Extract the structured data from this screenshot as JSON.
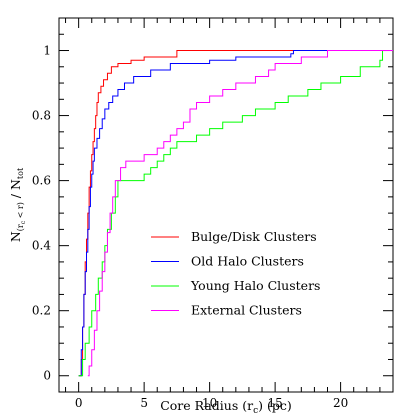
{
  "chart_data": {
    "type": "line",
    "subtype": "cumulative-step",
    "xlabel": "Core Radius (r",
    "xlabel_sub": "c",
    "xlabel_tail": ") (pc)",
    "ylabel_N": "N",
    "ylabel_sub": "(r",
    "ylabel_sub2": "c",
    "ylabel_sub3": " < r)",
    "ylabel_slash": " / N",
    "ylabel_tot": "tot",
    "xlim": [
      -1.5,
      24
    ],
    "ylim": [
      -0.05,
      1.1
    ],
    "x_ticks": [
      0,
      5,
      10,
      15,
      20
    ],
    "y_ticks": [
      0,
      0.2,
      0.4,
      0.6,
      0.8,
      1
    ],
    "x_tick_labels": [
      "0",
      "5",
      "10",
      "15",
      "20"
    ],
    "y_tick_labels": [
      "0",
      "0.2",
      "0.4",
      "0.6",
      "0.8",
      "1"
    ],
    "legend_position": "lower-right",
    "series": [
      {
        "name": "Bulge/Disk Clusters",
        "color": "#ff0000",
        "points": [
          [
            0,
            0
          ],
          [
            0.2,
            0.05
          ],
          [
            0.3,
            0.15
          ],
          [
            0.4,
            0.25
          ],
          [
            0.5,
            0.35
          ],
          [
            0.6,
            0.42
          ],
          [
            0.7,
            0.5
          ],
          [
            0.8,
            0.58
          ],
          [
            0.9,
            0.63
          ],
          [
            1.0,
            0.68
          ],
          [
            1.1,
            0.72
          ],
          [
            1.2,
            0.76
          ],
          [
            1.3,
            0.8
          ],
          [
            1.4,
            0.84
          ],
          [
            1.5,
            0.87
          ],
          [
            1.7,
            0.89
          ],
          [
            1.9,
            0.91
          ],
          [
            2.2,
            0.93
          ],
          [
            2.5,
            0.95
          ],
          [
            3.0,
            0.96
          ],
          [
            4.0,
            0.97
          ],
          [
            5.0,
            0.98
          ],
          [
            7.5,
            1.0
          ],
          [
            24,
            1.0
          ]
        ]
      },
      {
        "name": "Old Halo Clusters",
        "color": "#0000ff",
        "points": [
          [
            0,
            0
          ],
          [
            0.2,
            0.08
          ],
          [
            0.3,
            0.15
          ],
          [
            0.4,
            0.25
          ],
          [
            0.5,
            0.32
          ],
          [
            0.6,
            0.38
          ],
          [
            0.7,
            0.45
          ],
          [
            0.8,
            0.52
          ],
          [
            0.9,
            0.58
          ],
          [
            1.0,
            0.62
          ],
          [
            1.1,
            0.66
          ],
          [
            1.2,
            0.7
          ],
          [
            1.4,
            0.73
          ],
          [
            1.6,
            0.76
          ],
          [
            1.8,
            0.79
          ],
          [
            2.0,
            0.82
          ],
          [
            2.3,
            0.84
          ],
          [
            2.6,
            0.86
          ],
          [
            3.0,
            0.88
          ],
          [
            3.5,
            0.9
          ],
          [
            4.2,
            0.92
          ],
          [
            5.5,
            0.94
          ],
          [
            7.0,
            0.96
          ],
          [
            10.0,
            0.97
          ],
          [
            12.0,
            0.98
          ],
          [
            16.2,
            0.99
          ],
          [
            16.4,
            1.0
          ],
          [
            24,
            1.0
          ]
        ]
      },
      {
        "name": "Young Halo Clusters",
        "color": "#00ff00",
        "points": [
          [
            0,
            0
          ],
          [
            0.3,
            0.05
          ],
          [
            0.5,
            0.1
          ],
          [
            0.8,
            0.15
          ],
          [
            1.0,
            0.2
          ],
          [
            1.3,
            0.25
          ],
          [
            1.5,
            0.3
          ],
          [
            1.8,
            0.35
          ],
          [
            2.0,
            0.4
          ],
          [
            2.2,
            0.45
          ],
          [
            2.5,
            0.5
          ],
          [
            2.8,
            0.55
          ],
          [
            3.0,
            0.6
          ],
          [
            4.5,
            0.6
          ],
          [
            5.0,
            0.62
          ],
          [
            5.5,
            0.64
          ],
          [
            6.0,
            0.66
          ],
          [
            6.5,
            0.68
          ],
          [
            7.0,
            0.7
          ],
          [
            7.5,
            0.72
          ],
          [
            9.0,
            0.74
          ],
          [
            10.0,
            0.76
          ],
          [
            11.0,
            0.78
          ],
          [
            12.5,
            0.8
          ],
          [
            13.5,
            0.82
          ],
          [
            15.0,
            0.84
          ],
          [
            16.0,
            0.86
          ],
          [
            17.5,
            0.88
          ],
          [
            18.5,
            0.9
          ],
          [
            20.0,
            0.92
          ],
          [
            21.5,
            0.95
          ],
          [
            23.0,
            0.97
          ],
          [
            23.2,
            1.0
          ],
          [
            24,
            1.0
          ]
        ]
      },
      {
        "name": "External Clusters",
        "color": "#ff00ff",
        "points": [
          [
            0.7,
            0
          ],
          [
            0.8,
            0.03
          ],
          [
            1.0,
            0.08
          ],
          [
            1.2,
            0.14
          ],
          [
            1.4,
            0.2
          ],
          [
            1.6,
            0.26
          ],
          [
            1.8,
            0.32
          ],
          [
            2.0,
            0.38
          ],
          [
            2.2,
            0.44
          ],
          [
            2.4,
            0.5
          ],
          [
            2.6,
            0.55
          ],
          [
            2.8,
            0.6
          ],
          [
            3.2,
            0.64
          ],
          [
            3.6,
            0.66
          ],
          [
            5.0,
            0.68
          ],
          [
            6.0,
            0.7
          ],
          [
            6.5,
            0.72
          ],
          [
            7.0,
            0.74
          ],
          [
            7.5,
            0.76
          ],
          [
            8.0,
            0.78
          ],
          [
            8.5,
            0.82
          ],
          [
            9.0,
            0.84
          ],
          [
            10.0,
            0.86
          ],
          [
            11.0,
            0.88
          ],
          [
            12.0,
            0.9
          ],
          [
            13.5,
            0.92
          ],
          [
            14.5,
            0.94
          ],
          [
            15.0,
            0.96
          ],
          [
            17.0,
            0.98
          ],
          [
            19.0,
            1.0
          ],
          [
            24,
            1.0
          ]
        ]
      }
    ]
  }
}
